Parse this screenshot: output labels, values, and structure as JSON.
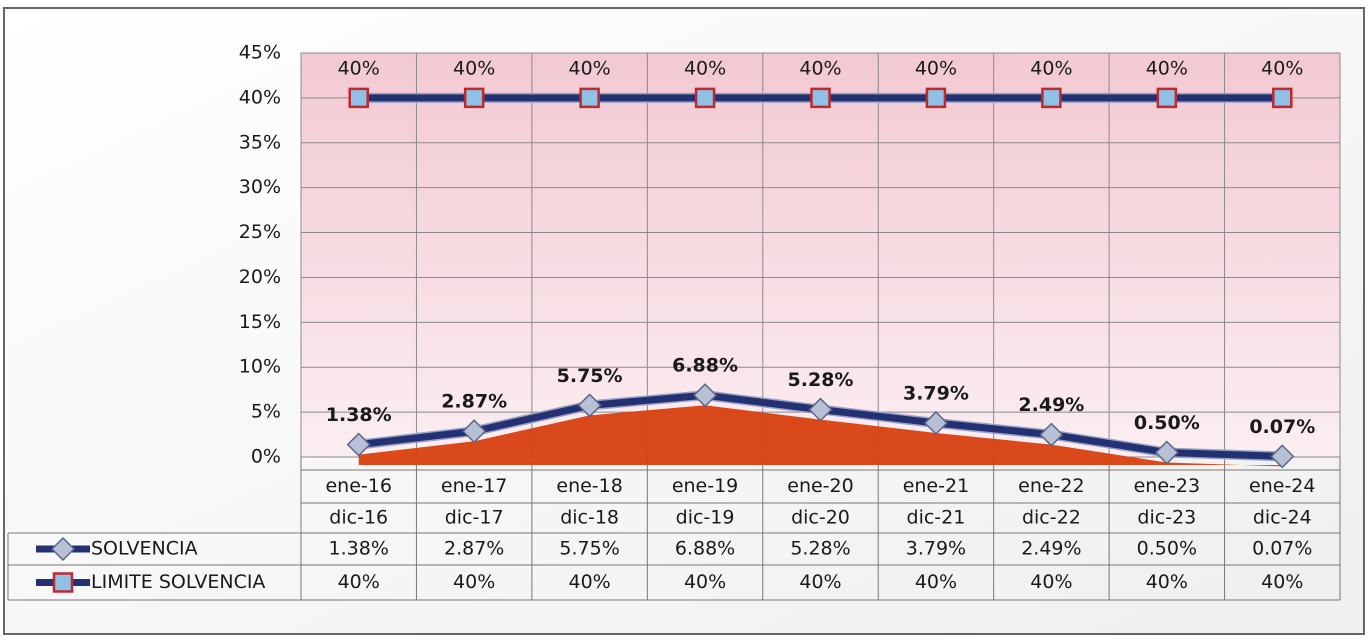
{
  "chart_data": {
    "type": "line",
    "categories": [
      [
        "ene-16",
        "dic-16"
      ],
      [
        "ene-17",
        "dic-17"
      ],
      [
        "ene-18",
        "dic-18"
      ],
      [
        "ene-19",
        "dic-19"
      ],
      [
        "ene-20",
        "dic-20"
      ],
      [
        "ene-21",
        "dic-21"
      ],
      [
        "ene-22",
        "dic-22"
      ],
      [
        "ene-23",
        "dic-23"
      ],
      [
        "ene-24",
        "dic-24"
      ]
    ],
    "series": [
      {
        "name": "SOLVENCIA",
        "color": "#233172",
        "marker": "diamond",
        "values": [
          1.38,
          2.87,
          5.75,
          6.88,
          5.28,
          3.79,
          2.49,
          0.5,
          0.07
        ],
        "value_labels": [
          "1.38%",
          "2.87%",
          "5.75%",
          "6.88%",
          "5.28%",
          "3.79%",
          "2.49%",
          "0.50%",
          "0.07%"
        ]
      },
      {
        "name": "LIMITE SOLVENCIA",
        "color": "#233172",
        "marker": "square",
        "values": [
          40,
          40,
          40,
          40,
          40,
          40,
          40,
          40,
          40
        ],
        "value_labels": [
          "40%",
          "40%",
          "40%",
          "40%",
          "40%",
          "40%",
          "40%",
          "40%",
          "40%"
        ]
      }
    ],
    "area_color": "#d8400f",
    "ylim": [
      0,
      45
    ],
    "yticks": [
      {
        "value": 0,
        "label": "0%"
      },
      {
        "value": 5,
        "label": "5%"
      },
      {
        "value": 10,
        "label": "10%"
      },
      {
        "value": 15,
        "label": "15%"
      },
      {
        "value": 20,
        "label": "20%"
      },
      {
        "value": 25,
        "label": "25%"
      },
      {
        "value": 30,
        "label": "30%"
      },
      {
        "value": 35,
        "label": "35%"
      },
      {
        "value": 40,
        "label": "40%"
      },
      {
        "value": 45,
        "label": "45%"
      }
    ],
    "grid": true
  }
}
